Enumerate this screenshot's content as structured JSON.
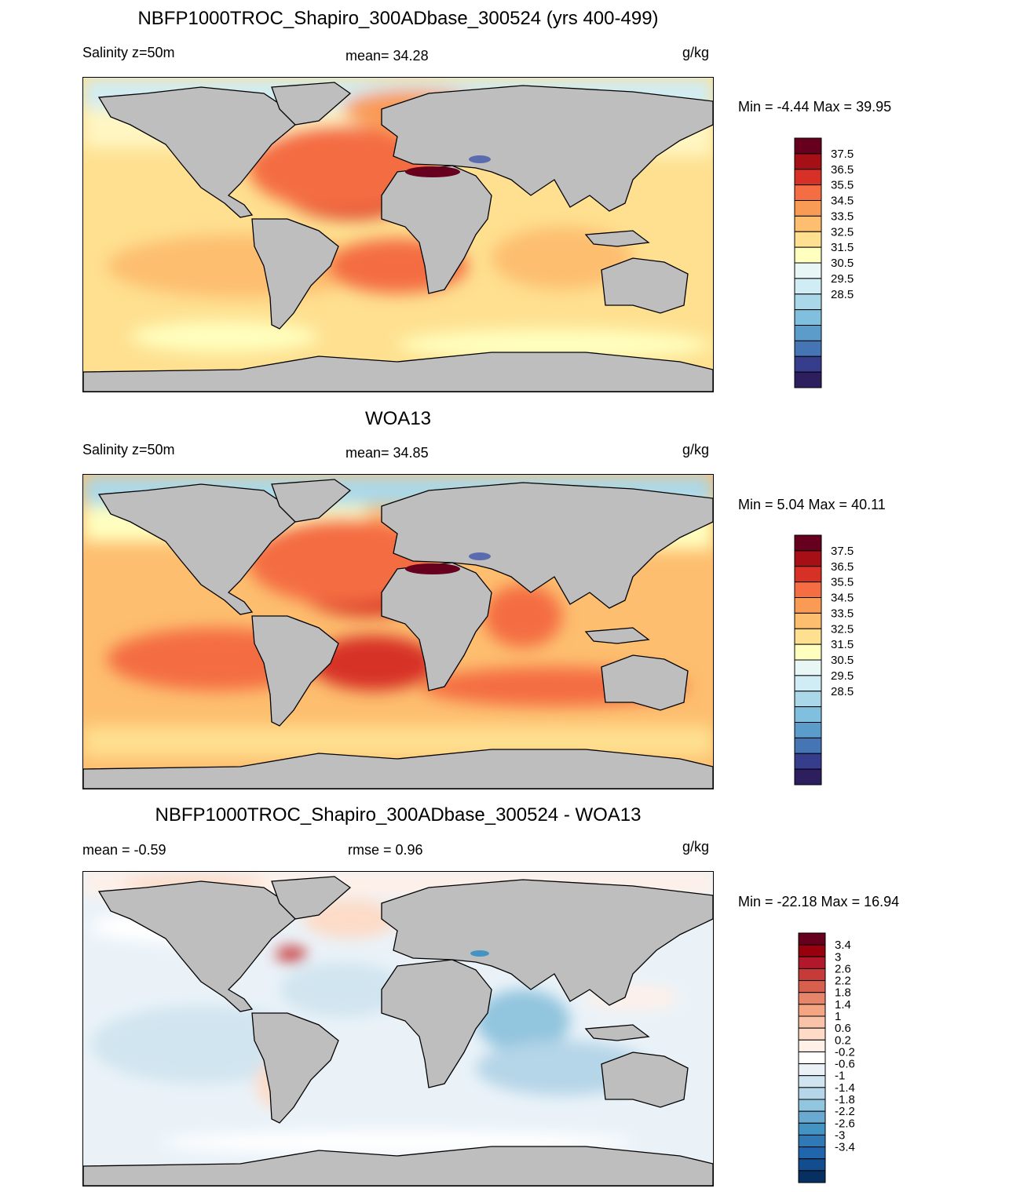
{
  "panels": [
    {
      "title": "NBFP1000TROC_Shapiro_300ADbase_300524 (yrs 400-499)",
      "left_label": "Salinity z=50m",
      "center_label": "mean=  34.28",
      "units": "g/kg",
      "minmax": "Min =  -4.44 Max =  39.95",
      "colorbar": {
        "labels": [
          "37.5",
          "36.5",
          "35.5",
          "34.5",
          "33.5",
          "32.5",
          "31.5",
          "30.5",
          "29.5",
          "28.5"
        ],
        "colors": [
          "#67001f",
          "#a50f15",
          "#d73027",
          "#f46d43",
          "#f99a55",
          "#fdbe6f",
          "#fee090",
          "#ffffbf",
          "#e8f6f6",
          "#d0ecf4",
          "#aad8e9",
          "#80bfdd",
          "#5b9ccb",
          "#4575b4",
          "#353d8c",
          "#2d1e5e"
        ]
      }
    },
    {
      "title": "WOA13",
      "left_label": "Salinity z=50m",
      "center_label": "mean=  34.85",
      "units": "g/kg",
      "minmax": "Min =   5.04 Max =  40.11",
      "colorbar": {
        "labels": [
          "37.5",
          "36.5",
          "35.5",
          "34.5",
          "33.5",
          "32.5",
          "31.5",
          "30.5",
          "29.5",
          "28.5"
        ],
        "colors": [
          "#67001f",
          "#a50f15",
          "#d73027",
          "#f46d43",
          "#f99a55",
          "#fdbe6f",
          "#fee090",
          "#ffffbf",
          "#e8f6f6",
          "#d0ecf4",
          "#aad8e9",
          "#80bfdd",
          "#5b9ccb",
          "#4575b4",
          "#353d8c",
          "#2d1e5e"
        ]
      }
    },
    {
      "title": "NBFP1000TROC_Shapiro_300ADbase_300524 - WOA13",
      "left_label": "mean =  -0.59",
      "center_label": "rmse =   0.96",
      "units": "g/kg",
      "minmax": "Min = -22.18 Max =  16.94",
      "colorbar": {
        "labels": [
          "3.4",
          "3",
          "2.6",
          "2.2",
          "1.8",
          "1.4",
          "1",
          "0.6",
          "0.2",
          "-0.2",
          "-0.6",
          "-1",
          "-1.4",
          "-1.8",
          "-2.2",
          "-2.6",
          "-3",
          "-3.4"
        ],
        "colors": [
          "#67001f",
          "#99000d",
          "#b2182b",
          "#c63a3a",
          "#d6604d",
          "#e7856b",
          "#f4a582",
          "#f8c3a8",
          "#fddbc7",
          "#fff0e8",
          "#ffffff",
          "#eaf2f8",
          "#d1e5f0",
          "#b5d5e8",
          "#92c5de",
          "#6aa9d0",
          "#4393c3",
          "#2f7ab6",
          "#2166ac",
          "#124d8f",
          "#053061"
        ]
      }
    }
  ],
  "colors": {
    "land": "#bebebe",
    "coast": "#000000"
  }
}
